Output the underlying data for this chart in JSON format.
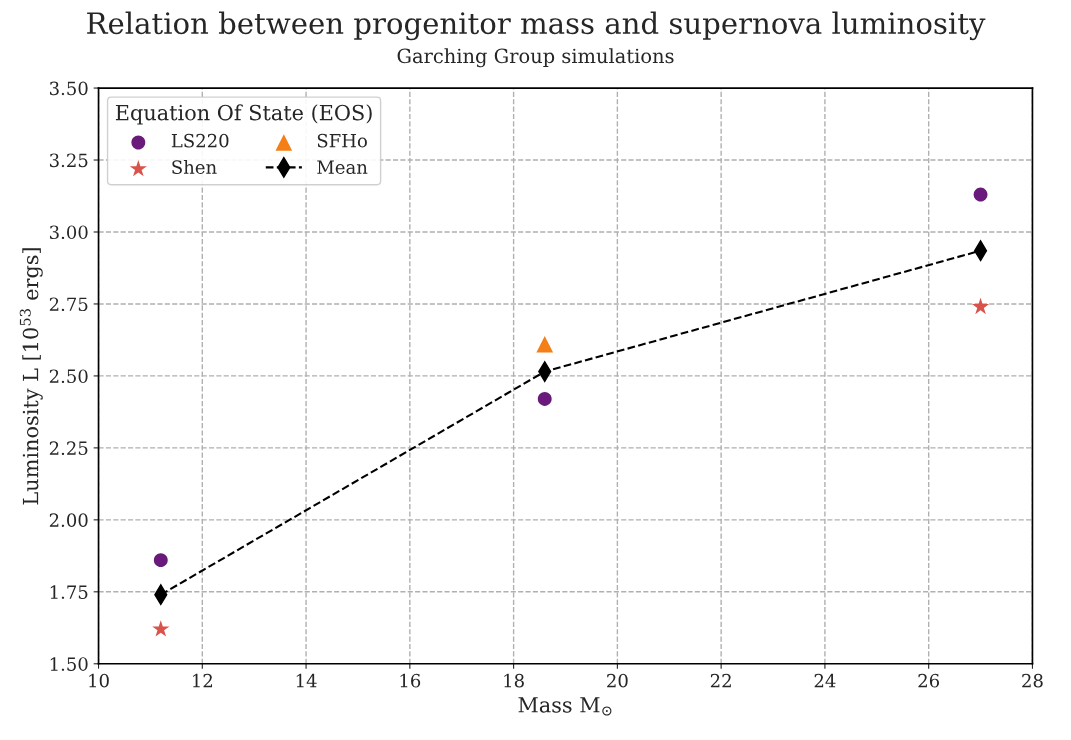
{
  "chart_data": {
    "type": "scatter",
    "title": "Relation between progenitor mass and supernova luminosity",
    "subtitle": "Garching Group simulations",
    "xlabel": "Mass M$_{⊙}$",
    "ylabel": "Luminosity L [10$^{53}$ ergs]",
    "legend_title": "Equation Of State (EOS)",
    "series": [
      {
        "name": "LS220",
        "marker": "circle",
        "color": "#6a1a7a",
        "x": [
          11.2,
          18.6,
          27
        ],
        "values": [
          1.86,
          2.42,
          3.13
        ]
      },
      {
        "name": "Shen",
        "marker": "star",
        "color": "#d9534a",
        "x": [
          11.2,
          27
        ],
        "values": [
          1.62,
          2.74
        ]
      },
      {
        "name": "SFHo",
        "marker": "triangle",
        "color": "#f57f17",
        "x": [
          18.6
        ],
        "values": [
          2.61
        ]
      },
      {
        "name": "Mean",
        "type": "line",
        "marker": "diamond",
        "line_style": "dashed",
        "color": "#000000",
        "x": [
          11.2,
          18.6,
          27
        ],
        "values": [
          1.74,
          2.515,
          2.935
        ]
      }
    ],
    "xlim": [
      10,
      28
    ],
    "xticks": [
      10,
      12,
      14,
      16,
      18,
      20,
      22,
      24,
      26,
      28
    ],
    "ylim": [
      1.5,
      3.5
    ],
    "yticks": [
      {
        "value": 1.5,
        "label": "1.50"
      },
      {
        "value": 1.75,
        "label": "1.75"
      },
      {
        "value": 2.0,
        "label": "2.00"
      },
      {
        "value": 2.25,
        "label": "2.25"
      },
      {
        "value": 2.5,
        "label": "2.50"
      },
      {
        "value": 2.75,
        "label": "2.75"
      },
      {
        "value": 3.0,
        "label": "3.00"
      },
      {
        "value": 3.25,
        "label": "3.25"
      },
      {
        "value": 3.5,
        "label": "3.50"
      }
    ],
    "grid": true,
    "legend": "top left"
  }
}
